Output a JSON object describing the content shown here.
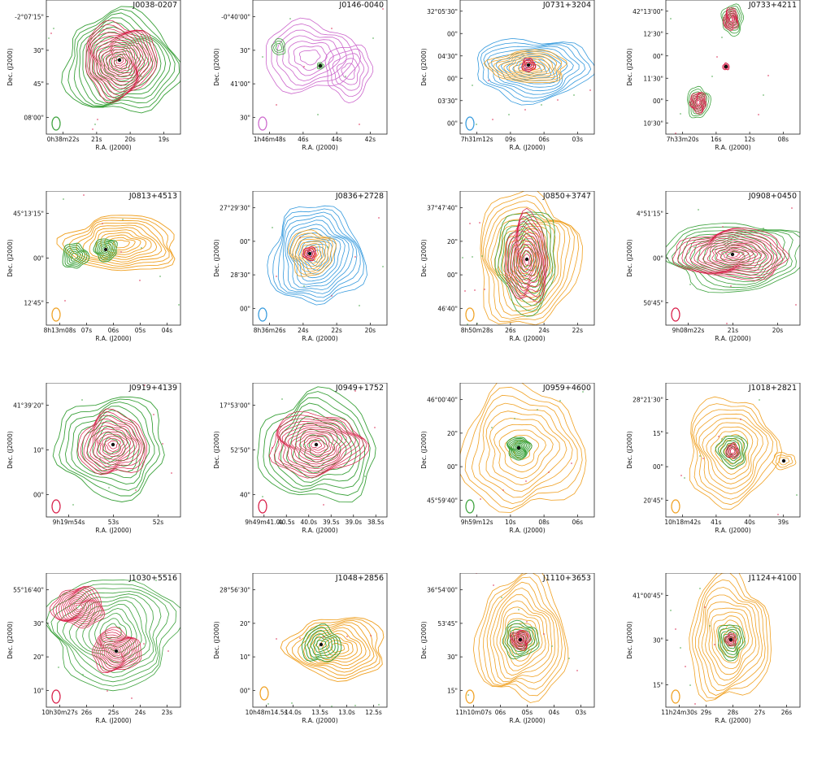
{
  "colors": {
    "green": "#3aa13a",
    "red": "#d81b46",
    "orange": "#f0a020",
    "blue": "#3399dd",
    "violet": "#cc66cc",
    "cyan": "#22aaaa",
    "frame": "#222222"
  },
  "chart_data": [
    {
      "type": "contour",
      "title": "J0038-0207",
      "xlabel": "R.A. (J2000)",
      "ylabel": "Dec. (J2000)",
      "xticks": [
        "0h38m22s",
        "21s",
        "20s",
        "19s"
      ],
      "yticks": [
        "-2°07'15\"",
        "30\"",
        "45\"",
        "08'00\""
      ],
      "layers": [
        {
          "color": "green",
          "role": "outer"
        },
        {
          "color": "red",
          "role": "inner"
        }
      ]
    },
    {
      "type": "contour",
      "title": "J0146-0040",
      "xlabel": "R.A. (J2000)",
      "ylabel": "Dec. (J2000)",
      "xticks": [
        "1h46m48s",
        "46s",
        "44s",
        "42s"
      ],
      "yticks": [
        "-0°40'00\"",
        "30\"",
        "41'00\"",
        "30\""
      ],
      "layers": [
        {
          "color": "violet",
          "role": "outer"
        },
        {
          "color": "green",
          "role": "inner"
        }
      ]
    },
    {
      "type": "contour",
      "title": "J0731+3204",
      "xlabel": "R.A. (J2000)",
      "ylabel": "Dec. (J2000)",
      "xticks": [
        "7h31m12s",
        "09s",
        "06s",
        "03s"
      ],
      "yticks": [
        "32°05'30\"",
        "00\"",
        "04'30\"",
        "00\"",
        "03'30\"",
        "00\""
      ],
      "layers": [
        {
          "color": "blue",
          "role": "outer"
        },
        {
          "color": "orange",
          "role": "inner"
        },
        {
          "color": "red",
          "role": "core"
        }
      ]
    },
    {
      "type": "contour",
      "title": "J0733+4211",
      "xlabel": "R.A. (J2000)",
      "ylabel": "Dec. (J2000)",
      "xticks": [
        "7h33m20s",
        "16s",
        "12s",
        "08s"
      ],
      "yticks": [
        "42°13'00\"",
        "12'30\"",
        "00\"",
        "11'30\"",
        "00\"",
        "10'30\""
      ],
      "layers": [
        {
          "color": "green",
          "role": "outer"
        },
        {
          "color": "red",
          "role": "inner"
        }
      ]
    },
    {
      "type": "contour",
      "title": "J0813+4513",
      "xlabel": "R.A. (J2000)",
      "ylabel": "Dec. (J2000)",
      "xticks": [
        "8h13m08s",
        "07s",
        "06s",
        "05s",
        "04s"
      ],
      "yticks": [
        "45°13'15\"",
        "00\"",
        "12'45\""
      ],
      "layers": [
        {
          "color": "orange",
          "role": "outer"
        },
        {
          "color": "green",
          "role": "inner"
        }
      ]
    },
    {
      "type": "contour",
      "title": "J0836+2728",
      "xlabel": "R.A. (J2000)",
      "ylabel": "Dec. (J2000)",
      "xticks": [
        "8h36m26s",
        "24s",
        "22s",
        "20s"
      ],
      "yticks": [
        "27°29'30\"",
        "00\"",
        "28'30\"",
        "00\""
      ],
      "layers": [
        {
          "color": "blue",
          "role": "outer"
        },
        {
          "color": "orange",
          "role": "inner"
        },
        {
          "color": "red",
          "role": "core"
        }
      ]
    },
    {
      "type": "contour",
      "title": "J0850+3747",
      "xlabel": "R.A. (J2000)",
      "ylabel": "Dec. (J2000)",
      "xticks": [
        "8h50m28s",
        "26s",
        "24s",
        "22s"
      ],
      "yticks": [
        "37°47'40\"",
        "20\"",
        "00\"",
        "46'40\""
      ],
      "layers": [
        {
          "color": "orange",
          "role": "outer"
        },
        {
          "color": "green",
          "role": "inner"
        },
        {
          "color": "red",
          "role": "core"
        }
      ]
    },
    {
      "type": "contour",
      "title": "J0908+0450",
      "xlabel": "R.A. (J2000)",
      "ylabel": "Dec. (J2000)",
      "xticks": [
        "9h08m22s",
        "21s",
        "20s"
      ],
      "yticks": [
        "4°51'15\"",
        "00\"",
        "50'45\""
      ],
      "layers": [
        {
          "color": "green",
          "role": "outer"
        },
        {
          "color": "red",
          "role": "inner"
        }
      ]
    },
    {
      "type": "contour",
      "title": "J0919+4139",
      "xlabel": "R.A. (J2000)",
      "ylabel": "Dec. (J2000)",
      "xticks": [
        "9h19m54s",
        "53s",
        "52s"
      ],
      "yticks": [
        "41°39'20\"",
        "10\"",
        "00\""
      ],
      "layers": [
        {
          "color": "green",
          "role": "outer"
        },
        {
          "color": "red",
          "role": "inner"
        }
      ]
    },
    {
      "type": "contour",
      "title": "J0949+1752",
      "xlabel": "R.A. (J2000)",
      "ylabel": "Dec. (J2000)",
      "xticks": [
        "9h49m41.0s",
        "40.5s",
        "40.0s",
        "39.5s",
        "39.0s",
        "38.5s"
      ],
      "yticks": [
        "17°53'00\"",
        "52'50\"",
        "40\""
      ],
      "layers": [
        {
          "color": "green",
          "role": "outer"
        },
        {
          "color": "red",
          "role": "inner"
        }
      ]
    },
    {
      "type": "contour",
      "title": "J0959+4600",
      "xlabel": "R.A. (J2000)",
      "ylabel": "Dec. (J2000)",
      "xticks": [
        "9h59m12s",
        "10s",
        "08s",
        "06s"
      ],
      "yticks": [
        "46°00'40\"",
        "20\"",
        "00\"",
        "45°59'40\""
      ],
      "layers": [
        {
          "color": "orange",
          "role": "outer"
        },
        {
          "color": "green",
          "role": "inner"
        }
      ]
    },
    {
      "type": "contour",
      "title": "J1018+2821",
      "xlabel": "R.A. (J2000)",
      "ylabel": "Dec. (J2000)",
      "xticks": [
        "10h18m42s",
        "41s",
        "40s",
        "39s"
      ],
      "yticks": [
        "28°21'30\"",
        "15\"",
        "00\"",
        "20'45\""
      ],
      "layers": [
        {
          "color": "orange",
          "role": "outer"
        },
        {
          "color": "green",
          "role": "inner"
        },
        {
          "color": "red",
          "role": "core"
        }
      ]
    },
    {
      "type": "contour",
      "title": "J1030+5516",
      "xlabel": "R.A. (J2000)",
      "ylabel": "Dec. (J2000)",
      "xticks": [
        "10h30m27s",
        "26s",
        "25s",
        "24s",
        "23s"
      ],
      "yticks": [
        "55°16'40\"",
        "30\"",
        "20\"",
        "10\""
      ],
      "layers": [
        {
          "color": "green",
          "role": "outer"
        },
        {
          "color": "red",
          "role": "inner"
        }
      ]
    },
    {
      "type": "contour",
      "title": "J1048+2856",
      "xlabel": "R.A. (J2000)",
      "ylabel": "Dec. (J2000)",
      "xticks": [
        "10h48m14.5s",
        "14.0s",
        "13.5s",
        "13.0s",
        "12.5s"
      ],
      "yticks": [
        "28°56'30\"",
        "20\"",
        "10\"",
        "00\""
      ],
      "layers": [
        {
          "color": "orange",
          "role": "outer"
        },
        {
          "color": "green",
          "role": "inner"
        }
      ]
    },
    {
      "type": "contour",
      "title": "J1110+3653",
      "xlabel": "R.A. (J2000)",
      "ylabel": "Dec. (J2000)",
      "xticks": [
        "11h10m07s",
        "06s",
        "05s",
        "04s",
        "03s"
      ],
      "yticks": [
        "36°54'00\"",
        "53'45\"",
        "30\"",
        "15\""
      ],
      "layers": [
        {
          "color": "orange",
          "role": "outer"
        },
        {
          "color": "green",
          "role": "inner"
        },
        {
          "color": "red",
          "role": "core"
        }
      ]
    },
    {
      "type": "contour",
      "title": "J1124+4100",
      "xlabel": "R.A. (J2000)",
      "ylabel": "Dec. (J2000)",
      "xticks": [
        "11h24m30s",
        "29s",
        "28s",
        "27s",
        "26s"
      ],
      "yticks": [
        "41°00'45\"",
        "30\"",
        "15\""
      ],
      "layers": [
        {
          "color": "orange",
          "role": "outer"
        },
        {
          "color": "green",
          "role": "inner"
        },
        {
          "color": "red",
          "role": "core"
        }
      ]
    }
  ]
}
